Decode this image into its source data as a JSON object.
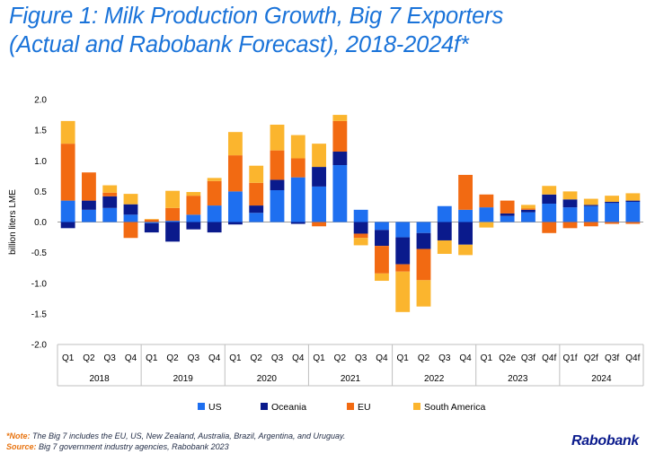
{
  "title_line1": "Figure 1: Milk Production Growth, Big 7 Exporters",
  "title_line2": "(Actual and Rabobank Forecast), 2018-2024f*",
  "note_label": "*Note:",
  "note_text": "The Big 7 includes the EU, US, New Zealand, Australia, Brazil, Argentina, and Uruguay.",
  "source_label": "Source:",
  "source_text": "Big 7 government industry agencies, Rabobank 2023",
  "brand": "Rabobank",
  "colors": {
    "US": "#1e6ff0",
    "Oceania": "#0a1a8c",
    "EU": "#f26a12",
    "South America": "#fbb52e",
    "text": "#000000",
    "grid": "#bfbfbf"
  },
  "chart_data": {
    "type": "bar",
    "stacked": true,
    "ylabel": "billion liters LME",
    "ylim": [
      -2.0,
      2.0
    ],
    "yticks": [
      "2.0",
      "1.5",
      "1.0",
      "0.5",
      "0.0",
      "-0.5",
      "-1.0",
      "-1.5",
      "-2.0"
    ],
    "categories": [
      "Q1",
      "Q2",
      "Q3",
      "Q4",
      "Q1",
      "Q2",
      "Q3",
      "Q4",
      "Q1",
      "Q2",
      "Q3",
      "Q4",
      "Q1",
      "Q2",
      "Q3",
      "Q4",
      "Q1",
      "Q2",
      "Q3",
      "Q4",
      "Q1",
      "Q2e",
      "Q3f",
      "Q4f",
      "Q1f",
      "Q2f",
      "Q3f",
      "Q4f"
    ],
    "groups": [
      {
        "label": "2018",
        "count": 4
      },
      {
        "label": "2019",
        "count": 4
      },
      {
        "label": "2020",
        "count": 4
      },
      {
        "label": "2021",
        "count": 4
      },
      {
        "label": "2022",
        "count": 4
      },
      {
        "label": "2023",
        "count": 4
      },
      {
        "label": "2024",
        "count": 4
      }
    ],
    "series": [
      {
        "name": "US",
        "values": [
          0.35,
          0.2,
          0.23,
          0.12,
          -0.02,
          0.02,
          0.12,
          0.27,
          0.5,
          0.15,
          0.52,
          0.73,
          0.58,
          0.93,
          0.2,
          -0.13,
          -0.25,
          -0.18,
          0.26,
          0.2,
          0.24,
          0.1,
          0.16,
          0.3,
          0.24,
          0.26,
          0.31,
          0.33
        ]
      },
      {
        "name": "Oceania",
        "values": [
          -0.1,
          0.15,
          0.19,
          0.17,
          -0.15,
          -0.32,
          -0.12,
          -0.17,
          -0.04,
          0.12,
          0.17,
          -0.03,
          0.32,
          0.22,
          -0.19,
          -0.26,
          -0.44,
          -0.26,
          -0.3,
          -0.37,
          0.0,
          0.04,
          0.04,
          0.15,
          0.13,
          0.02,
          0.02,
          0.02
        ]
      },
      {
        "name": "EU",
        "values": [
          0.93,
          0.46,
          0.06,
          -0.26,
          0.04,
          0.21,
          0.31,
          0.4,
          0.59,
          0.37,
          0.48,
          0.31,
          -0.07,
          0.5,
          -0.07,
          -0.45,
          -0.12,
          -0.51,
          0.0,
          0.57,
          0.21,
          0.21,
          0.02,
          -0.18,
          -0.1,
          -0.07,
          -0.03,
          -0.03
        ]
      },
      {
        "name": "South America",
        "values": [
          0.37,
          0.0,
          0.12,
          0.17,
          0.01,
          0.28,
          0.06,
          0.05,
          0.38,
          0.28,
          0.42,
          0.38,
          0.38,
          0.1,
          -0.12,
          -0.12,
          -0.66,
          -0.43,
          -0.22,
          -0.17,
          -0.09,
          0.0,
          0.06,
          0.14,
          0.13,
          0.1,
          0.1,
          0.12
        ]
      }
    ],
    "legend": [
      "US",
      "Oceania",
      "EU",
      "South America"
    ],
    "legend_position": "bottom"
  }
}
